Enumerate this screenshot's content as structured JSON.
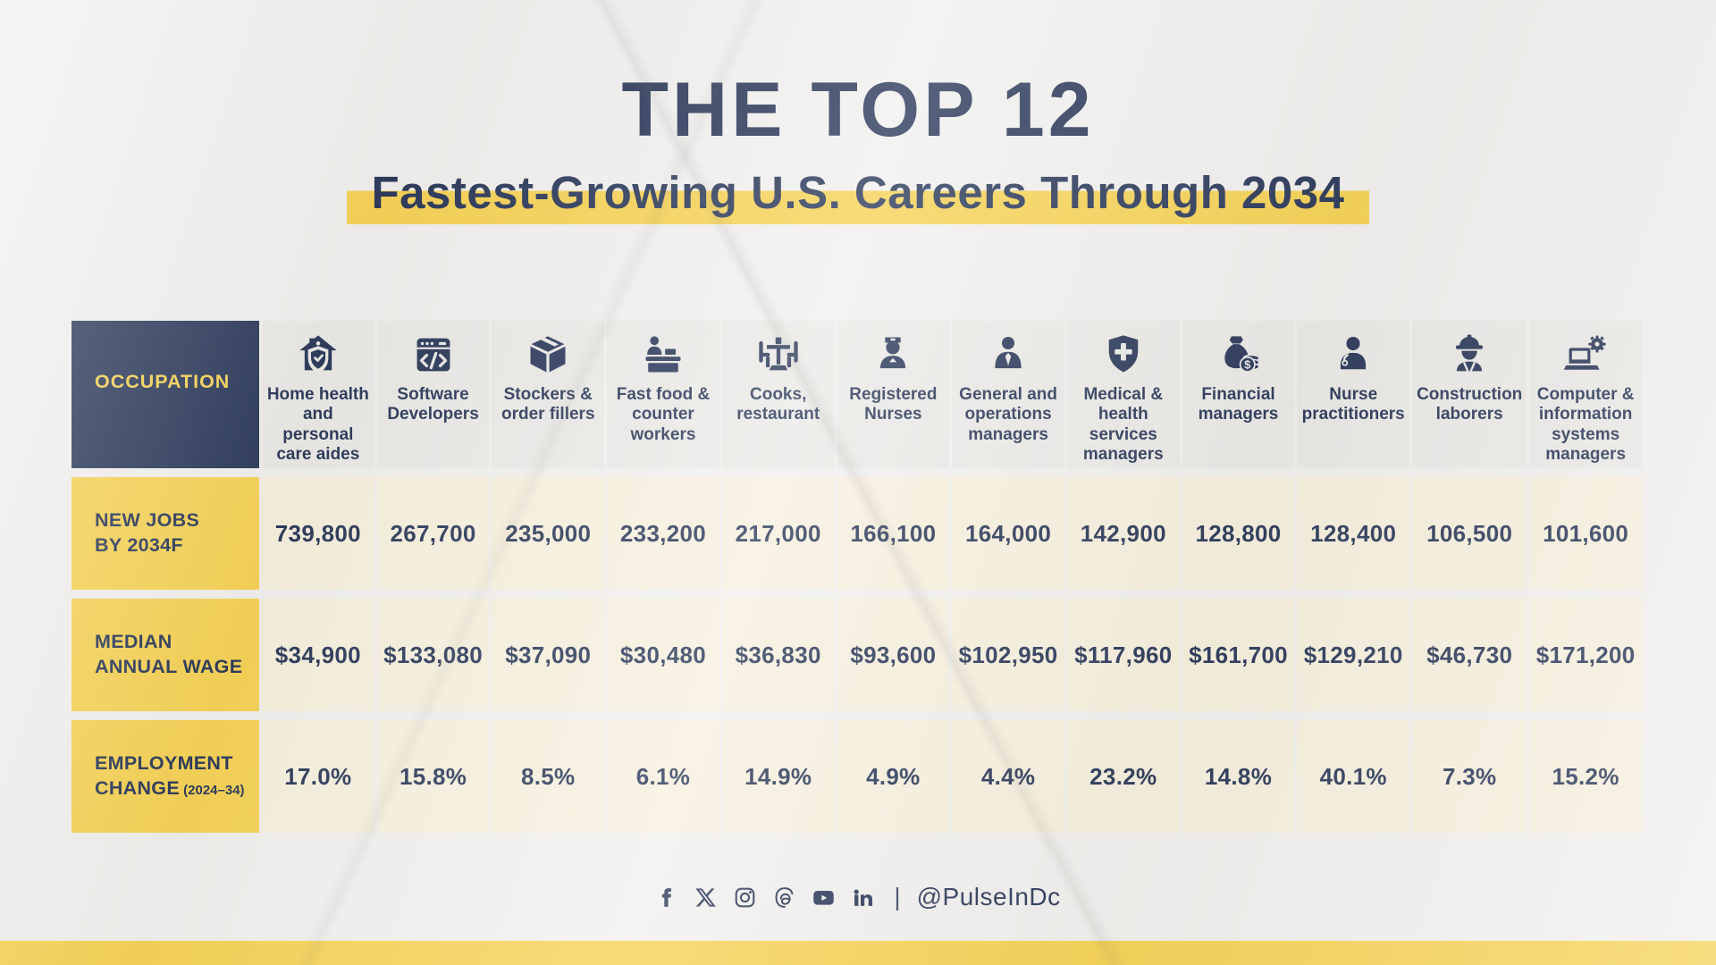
{
  "colors": {
    "navy": "#1c2b4e",
    "yellow": "#f5cf4a",
    "cream": "#f6efdc",
    "grey": "#e9e8e5",
    "bg": "#f0efed"
  },
  "title": "THE TOP 12",
  "subtitle": "Fastest-Growing U.S. Careers Through 2034",
  "table": {
    "corner_label": "OCCUPATION",
    "rows": [
      {
        "label": "NEW JOBS\nBY 2034F",
        "suffix": ""
      },
      {
        "label": "MEDIAN\nANNUAL WAGE",
        "suffix": ""
      },
      {
        "label": "EMPLOYMENT\nCHANGE",
        "suffix": " (2024–34)"
      }
    ],
    "occupations": [
      {
        "name": "Home health and personal care aides",
        "icon": "house-shield-icon",
        "new_jobs": "739,800",
        "median_wage": "$34,900",
        "employment_change": "17.0%"
      },
      {
        "name": "Software Developers",
        "icon": "code-window-icon",
        "new_jobs": "267,700",
        "median_wage": "$133,080",
        "employment_change": "15.8%"
      },
      {
        "name": "Stockers & order fillers",
        "icon": "box-icon",
        "new_jobs": "235,000",
        "median_wage": "$37,090",
        "employment_change": "8.5%"
      },
      {
        "name": "Fast food & counter workers",
        "icon": "counter-attendant-icon",
        "new_jobs": "233,200",
        "median_wage": "$30,480",
        "employment_change": "6.1%"
      },
      {
        "name": "Cooks, restaurant",
        "icon": "restaurant-table-icon",
        "new_jobs": "217,000",
        "median_wage": "$36,830",
        "employment_change": "14.9%"
      },
      {
        "name": "Registered Nurses",
        "icon": "nurse-icon",
        "new_jobs": "166,100",
        "median_wage": "$93,600",
        "employment_change": "4.9%"
      },
      {
        "name": "General and operations managers",
        "icon": "businessman-icon",
        "new_jobs": "164,000",
        "median_wage": "$102,950",
        "employment_change": "4.4%"
      },
      {
        "name": "Medical & health services managers",
        "icon": "shield-cross-icon",
        "new_jobs": "142,900",
        "median_wage": "$117,960",
        "employment_change": "23.2%"
      },
      {
        "name": "Financial managers",
        "icon": "money-bag-icon",
        "new_jobs": "128,800",
        "median_wage": "$161,700",
        "employment_change": "14.8%"
      },
      {
        "name": "Nurse practitioners",
        "icon": "stethoscope-person-icon",
        "new_jobs": "128,400",
        "median_wage": "$129,210",
        "employment_change": "40.1%"
      },
      {
        "name": "Construction laborers",
        "icon": "construction-worker-icon",
        "new_jobs": "106,500",
        "median_wage": "$46,730",
        "employment_change": "7.3%"
      },
      {
        "name": "Computer & information systems managers",
        "icon": "laptop-gear-icon",
        "new_jobs": "101,600",
        "median_wage": "$171,200",
        "employment_change": "15.2%"
      }
    ]
  },
  "footer": {
    "icons": [
      "facebook-icon",
      "x-icon",
      "instagram-icon",
      "threads-icon",
      "youtube-icon",
      "linkedin-icon"
    ],
    "divider": "|",
    "handle": "@PulseInDc"
  },
  "chart_data": {
    "type": "table",
    "title": "THE TOP 12 Fastest-Growing U.S. Careers Through 2034",
    "row_headers": [
      "NEW JOBS BY 2034F",
      "MEDIAN ANNUAL WAGE",
      "EMPLOYMENT CHANGE (2024–34)"
    ],
    "categories": [
      "Home health and personal care aides",
      "Software Developers",
      "Stockers & order fillers",
      "Fast food & counter workers",
      "Cooks, restaurant",
      "Registered Nurses",
      "General and operations managers",
      "Medical & health services managers",
      "Financial managers",
      "Nurse practitioners",
      "Construction laborers",
      "Computer & information systems managers"
    ],
    "series": [
      {
        "name": "New jobs by 2034F",
        "values": [
          739800,
          267700,
          235000,
          233200,
          217000,
          166100,
          164000,
          142900,
          128800,
          128400,
          106500,
          101600
        ]
      },
      {
        "name": "Median annual wage (USD)",
        "values": [
          34900,
          133080,
          37090,
          30480,
          36830,
          93600,
          102950,
          117960,
          161700,
          129210,
          46730,
          171200
        ]
      },
      {
        "name": "Employment change 2024-34 (%)",
        "values": [
          17.0,
          15.8,
          8.5,
          6.1,
          14.9,
          4.9,
          4.4,
          23.2,
          14.8,
          40.1,
          7.3,
          15.2
        ]
      }
    ]
  }
}
